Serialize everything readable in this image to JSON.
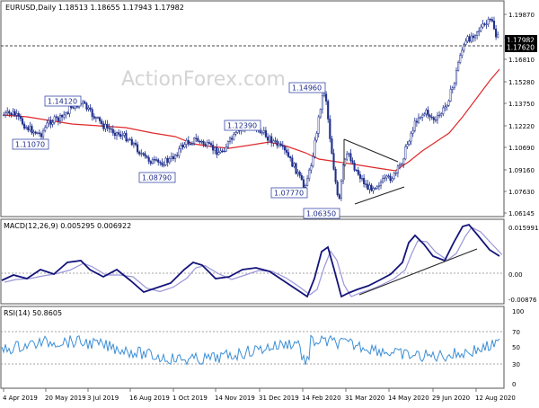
{
  "watermark": "ActionForex.com",
  "main_panel": {
    "header": "EURUSD,Daily  1.18513 1.18655 1.17943 1.17982",
    "price_axis_ticks": [
      "1.19870",
      "1.18340",
      "1.16810",
      "1.15280",
      "1.13750",
      "1.12220",
      "1.10690",
      "1.09160",
      "1.07630",
      "1.06145"
    ],
    "current_price_labels": [
      "1.17982",
      "1.17620"
    ],
    "annotations": [
      "1.14120",
      "1.11070",
      "1.08790",
      "1.12390",
      "1.07770",
      "1.14960",
      "1.06350"
    ]
  },
  "macd_panel": {
    "header": "MACD(12,26,9) 0.005295 0.006922",
    "axis_ticks": [
      "0.015991",
      "0.00",
      "-0.00876"
    ]
  },
  "rsi_panel": {
    "header": "RSI(14) 50.8605",
    "axis_ticks": [
      "100",
      "70",
      "50",
      "30",
      "0"
    ]
  },
  "date_axis": [
    "4 Apr 2019",
    "20 May 2019",
    "3 Jul 2019",
    "16 Aug 2019",
    "1 Oct 2019",
    "14 Nov 2019",
    "31 Dec 2019",
    "14 Feb 2020",
    "31 Mar 2020",
    "14 May 2020",
    "29 Jun 2020",
    "12 Aug 2020"
  ],
  "colors": {
    "candle": "#1f2f8c",
    "moving_average": "#e0282a",
    "macd_line": "#14147a",
    "signal_line": "#9b96d8",
    "rsi_line": "#3d8fd6",
    "trendline": "#222222",
    "grid": "#bbbbbb"
  },
  "chart_data": [
    {
      "type": "candlestick",
      "series": [
        {
          "name": "",
          "points": [
            [
              "4 Apr 2019",
              1.125
            ],
            [
              "20 May 2019",
              1.128
            ],
            [
              "3 Jul 2019",
              1.112
            ],
            [
              "16 Aug 2019",
              1.104
            ],
            [
              "1 Oct 2019",
              1.1
            ],
            [
              "14 Nov 2019",
              1.105
            ],
            [
              "31 Dec 2019",
              1.117
            ],
            [
              "14 Feb 2020",
              1.085
            ],
            [
              "31 Mar 2020",
              1.095
            ],
            [
              "14 May 2020",
              1.085
            ],
            [
              "29 Jun 2020",
              1.125
            ],
            [
              "12 Aug 2020",
              1.18
            ]
          ]
        },
        {
          "name": "",
          "points": [
            [
              "4 Apr 2019",
              1.125
            ],
            [
              "20 May 2019",
              1.122
            ],
            [
              "3 Jul 2019",
              1.118
            ],
            [
              "16 Aug 2019",
              1.114
            ],
            [
              "1 Oct 2019",
              1.108
            ],
            [
              "14 Nov 2019",
              1.107
            ],
            [
              "31 Dec 2019",
              1.108
            ],
            [
              "14 Feb 2020",
              1.101
            ],
            [
              "31 Mar 2020",
              1.097
            ],
            [
              "14 May 2020",
              1.093
            ],
            [
              "29 Jun 2020",
              1.11
            ],
            [
              "12 Aug 2020",
              1.162
            ]
          ]
        }
      ],
      "ylim": [
        1.06145,
        1.1987
      ]
    },
    {
      "type": "line",
      "series": [
        {
          "name": "",
          "points": [
            [
              "4 Apr 2019",
              -0.0005
            ],
            [
              "20 May 2019",
              0.0015
            ],
            [
              "3 Jul 2019",
              0.0045
            ],
            [
              "16 Aug 2019",
              -0.002
            ],
            [
              "1 Oct 2019",
              -0.004
            ],
            [
              "14 Nov 2019",
              0.003
            ],
            [
              "31 Dec 2019",
              0.002
            ],
            [
              "14 Feb 2020",
              -0.0065
            ],
            [
              "31 Mar 2020",
              -0.001
            ],
            [
              "14 May 2020",
              0.002
            ],
            [
              "29 Jun 2020",
              0.0095
            ],
            [
              "12 Aug 2020",
              0.015
            ]
          ]
        },
        {
          "name": "",
          "points": [
            [
              "4 Apr 2019",
              -0.0002
            ],
            [
              "20 May 2019",
              0.001
            ],
            [
              "3 Jul 2019",
              0.0035
            ],
            [
              "16 Aug 2019",
              -0.0015
            ],
            [
              "1 Oct 2019",
              -0.0035
            ],
            [
              "14 Nov 2019",
              0.0025
            ],
            [
              "31 Dec 2019",
              0.0018
            ],
            [
              "14 Feb 2020",
              -0.005
            ],
            [
              "31 Mar 2020",
              -0.0012
            ],
            [
              "14 May 2020",
              0.0018
            ],
            [
              "29 Jun 2020",
              0.0085
            ],
            [
              "12 Aug 2020",
              0.014
            ]
          ]
        }
      ],
      "ylim": [
        -0.00876,
        0.015991
      ]
    },
    {
      "type": "line",
      "series": [
        {
          "name": "",
          "points": [
            [
              "4 Apr 2019",
              52
            ],
            [
              "20 May 2019",
              55
            ],
            [
              "3 Jul 2019",
              58
            ],
            [
              "16 Aug 2019",
              45
            ],
            [
              "1 Oct 2019",
              42
            ],
            [
              "14 Nov 2019",
              57
            ],
            [
              "31 Dec 2019",
              60
            ],
            [
              "14 Feb 2020",
              30
            ],
            [
              "31 Mar 2020",
              48
            ],
            [
              "14 May 2020",
              55
            ],
            [
              "29 Jun 2020",
              65
            ],
            [
              "12 Aug 2020",
              70
            ]
          ]
        }
      ],
      "ylim": [
        0,
        100
      ]
    }
  ]
}
